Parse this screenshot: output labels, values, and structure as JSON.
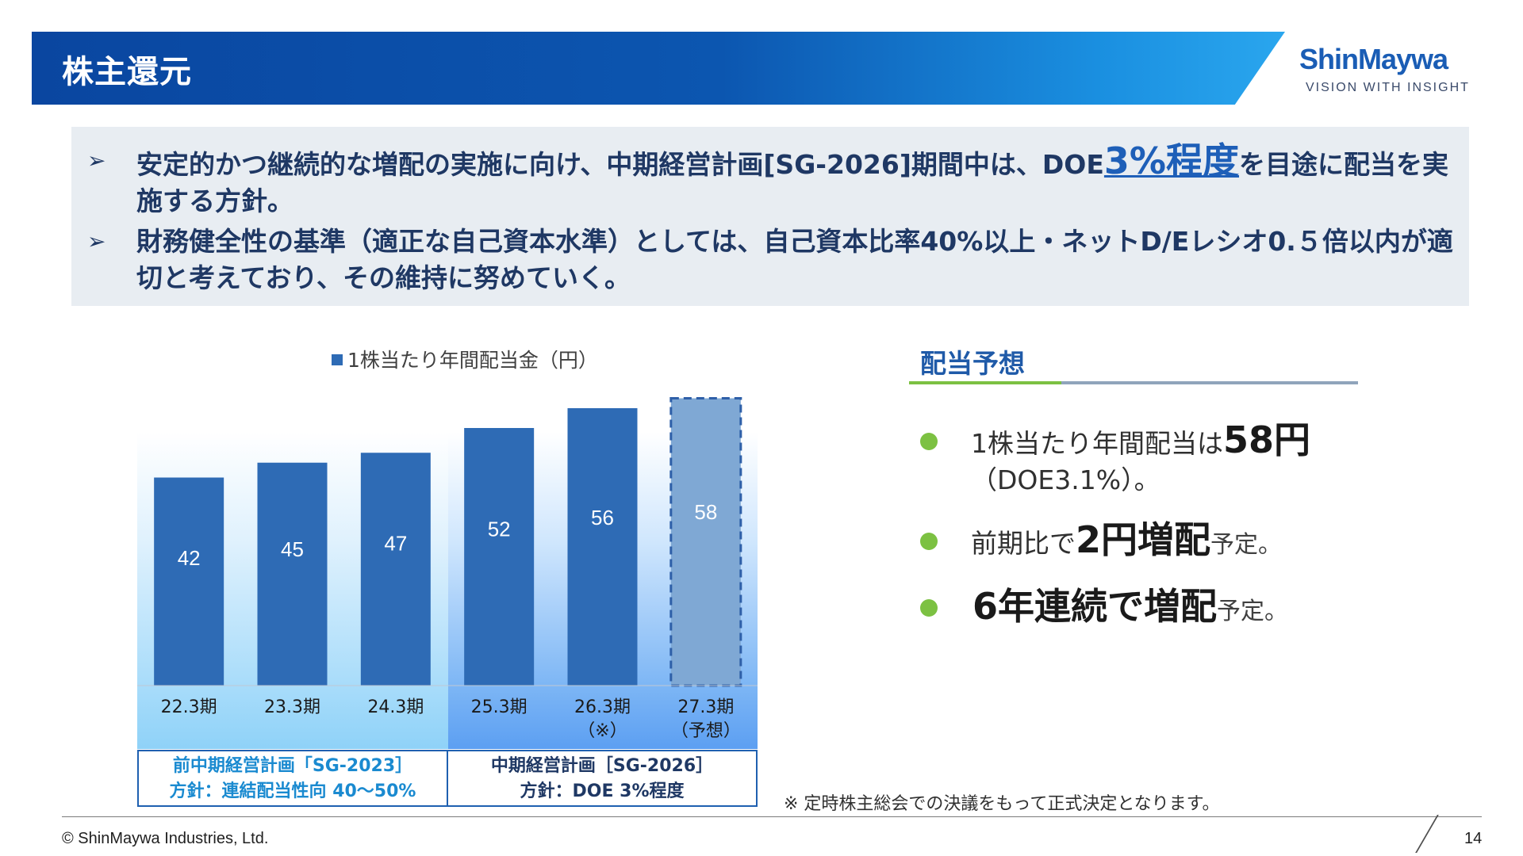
{
  "header": {
    "title": "株主還元"
  },
  "logo": {
    "name": "ShinMaywa",
    "tagline": "VISION WITH INSIGHT"
  },
  "policy": {
    "item1_pre": "安定的かつ継続的な増配の実施に向け、中期経営計画[SG-2026]期間中は、DOE",
    "item1_accent": "3%程度",
    "item1_post": "を目途に配当を実施する方針。",
    "item2": "財務健全性の基準（適正な自己資本水準）としては、自己資本比率40%以上・ネットD/Eレシオ0.５倍以内が適切と考えており、その維持に努めていく。"
  },
  "chart_data": {
    "type": "bar",
    "categories": [
      "22.3期",
      "23.3期",
      "24.3期",
      "25.3期",
      "26.3期\n（※）",
      "27.3期\n（予想）"
    ],
    "series": [
      {
        "name": "1株当たり年間配当金（円）",
        "values": [
          42,
          45,
          47,
          52,
          56,
          58
        ]
      }
    ],
    "forecast_index": 5,
    "ylim": [
      0,
      60
    ],
    "grid": false,
    "legend_position": "top",
    "colors": {
      "bar": "#2e6bb5",
      "forecast": "#7fa8d4",
      "forecast_border": "#2e5fa8"
    }
  },
  "legend": {
    "label": "1株当たり年間配当金（円）"
  },
  "plans": {
    "prev_line1": "前中期経営計画「SG-2023］",
    "prev_line2": "方針：連結配当性向 40～50%",
    "mid_line1": "中期経営計画［SG-2026］",
    "mid_line2": "方針：DOE 3%程度"
  },
  "note": "※ 定時株主総会での決議をもって正式決定となります。",
  "forecast": {
    "title": "配当予想",
    "item1_pre": "1株当たり年間配当は",
    "item1_strong": "58円",
    "item1_post": "（DOE3.1%）。",
    "item2_pre": "前期比で",
    "item2_strong": "2円増配",
    "item2_post": "予定。",
    "item3_strong": "6年連続で増配",
    "item3_post": "予定。"
  },
  "footer": {
    "copyright": "© ShinMaywa Industries, Ltd.",
    "page": "14"
  }
}
